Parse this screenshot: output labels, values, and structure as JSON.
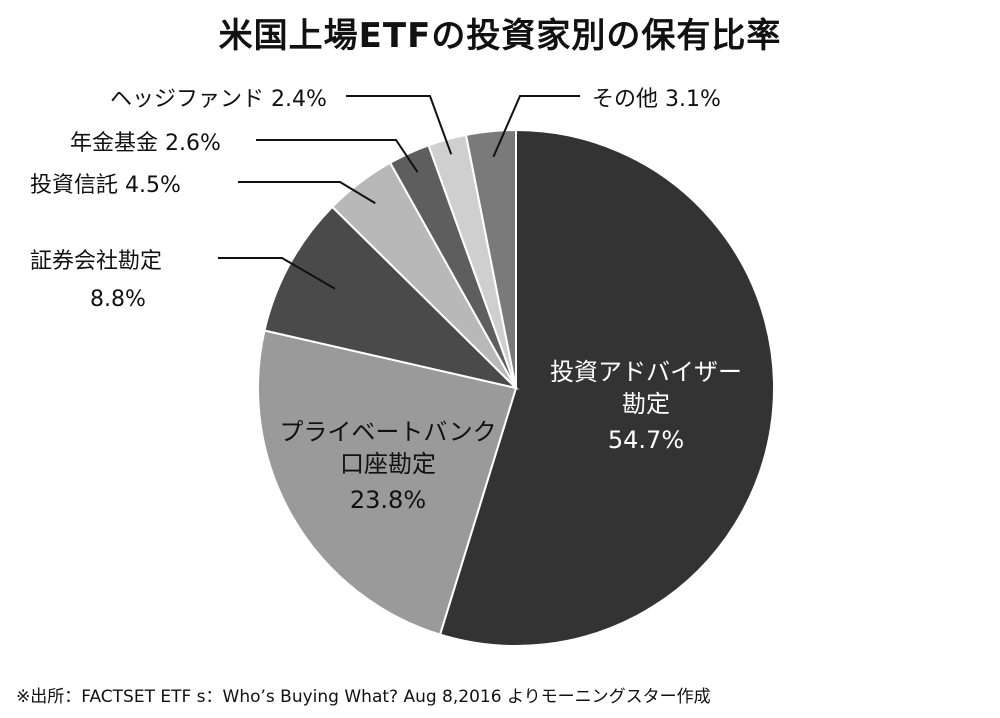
{
  "chart_data": {
    "type": "pie",
    "title": "米国上場ETFの投資家別の保有比率",
    "slices": [
      {
        "label": "投資アドバイザー勘定",
        "lines": [
          "投資アドバイザー",
          "勘定"
        ],
        "value": 54.7,
        "value_text": "54.7%",
        "color": "#333333"
      },
      {
        "label": "プライベートバンク口座勘定",
        "lines": [
          "プライベートバンク",
          "口座勘定"
        ],
        "value": 23.8,
        "value_text": "23.8%",
        "color": "#9a9a9a"
      },
      {
        "label": "証券会社勘定",
        "lines": [
          "証券会社勘定"
        ],
        "value": 8.8,
        "value_text": "8.8%",
        "color": "#4a4a4a"
      },
      {
        "label": "投資信託",
        "lines": [
          "投資信託"
        ],
        "value": 4.5,
        "value_text": "4.5%",
        "color": "#b8b8b8"
      },
      {
        "label": "年金基金",
        "lines": [
          "年金基金"
        ],
        "value": 2.6,
        "value_text": "2.6%",
        "color": "#5e5e5e"
      },
      {
        "label": "ヘッジファンド",
        "lines": [
          "ヘッジファンド"
        ],
        "value": 2.4,
        "value_text": "2.4%",
        "color": "#cfcfcf"
      },
      {
        "label": "その他",
        "lines": [
          "その他"
        ],
        "value": 3.1,
        "value_text": "3.1%",
        "color": "#7a7a7a"
      }
    ],
    "source": "※出所：FACTSET ETF s：Who’s Buying What? Aug 8,2016 よりモーニングスター作成"
  }
}
